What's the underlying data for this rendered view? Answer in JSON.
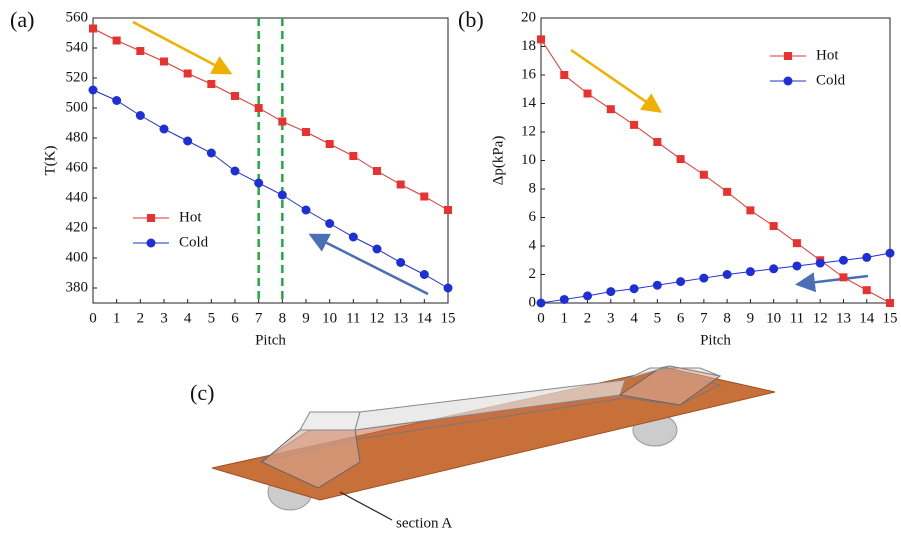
{
  "chart_data": [
    {
      "type": "line",
      "label": "(a)",
      "xlabel": "Pitch",
      "ylabel": "T(K)",
      "x": [
        0,
        1,
        2,
        3,
        4,
        5,
        6,
        7,
        8,
        9,
        10,
        11,
        12,
        13,
        14,
        15
      ],
      "xlim": [
        0,
        15
      ],
      "xticks": [
        0,
        1,
        2,
        3,
        4,
        5,
        6,
        7,
        8,
        9,
        10,
        11,
        12,
        13,
        14,
        15
      ],
      "ylim": [
        370,
        560
      ],
      "yticks": [
        380,
        400,
        420,
        440,
        460,
        480,
        500,
        520,
        540,
        560
      ],
      "legend": "lower left",
      "vlines": [
        7,
        8
      ],
      "vline_color": "#22aa44",
      "series": [
        {
          "name": "Hot",
          "color": "#e8322f",
          "marker": "square",
          "values": [
            553,
            545,
            538,
            531,
            523,
            516,
            508,
            500,
            491,
            484,
            476,
            468,
            458,
            449,
            441,
            432
          ]
        },
        {
          "name": "Cold",
          "color": "#1f2fd6",
          "marker": "circle",
          "values": [
            512,
            505,
            495,
            486,
            478,
            470,
            458,
            450,
            442,
            432,
            423,
            414,
            406,
            397,
            389,
            380
          ]
        }
      ]
    },
    {
      "type": "line",
      "label": "(b)",
      "xlabel": "Pitch",
      "ylabel": "Δp(kPa)",
      "x": [
        0,
        1,
        2,
        3,
        4,
        5,
        6,
        7,
        8,
        9,
        10,
        11,
        12,
        13,
        14,
        15
      ],
      "xlim": [
        0,
        15
      ],
      "xticks": [
        0,
        1,
        2,
        3,
        4,
        5,
        6,
        7,
        8,
        9,
        10,
        11,
        12,
        13,
        14,
        15
      ],
      "ylim": [
        0,
        20
      ],
      "yticks": [
        0,
        2,
        4,
        6,
        8,
        10,
        12,
        14,
        16,
        18,
        20
      ],
      "legend": "upper right",
      "series": [
        {
          "name": "Hot",
          "color": "#e8322f",
          "marker": "square",
          "values": [
            18.5,
            16,
            14.7,
            13.6,
            12.5,
            11.3,
            10.1,
            9.0,
            7.8,
            6.5,
            5.4,
            4.2,
            3.0,
            1.8,
            0.9,
            0
          ]
        },
        {
          "name": "Cold",
          "color": "#1f2fd6",
          "marker": "circle",
          "values": [
            0,
            0.25,
            0.5,
            0.8,
            1.0,
            1.25,
            1.5,
            1.75,
            2.0,
            2.2,
            2.4,
            2.6,
            2.8,
            3.0,
            3.2,
            3.5
          ]
        }
      ]
    }
  ],
  "panel_c": {
    "label": "(c)",
    "annotation": "section A"
  }
}
